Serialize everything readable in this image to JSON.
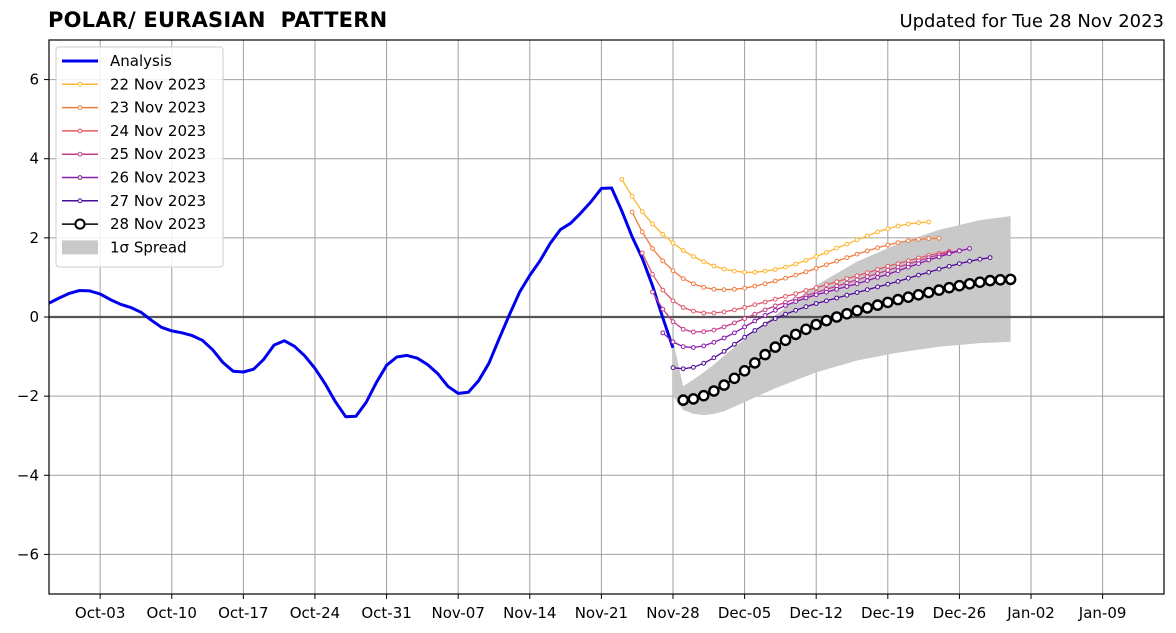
{
  "chart_data": {
    "type": "line",
    "title": "POLAR/ EURASIAN  PATTERN",
    "subtitle": "Updated for Tue 28 Nov 2023",
    "xlabel": "",
    "ylabel": "",
    "ylim": [
      -7,
      7
    ],
    "xlim": [
      "2023-09-28",
      "2024-01-15"
    ],
    "grid": true,
    "legend_position": "top-left",
    "x_ticks": [
      "2023-10-03",
      "2023-10-10",
      "2023-10-17",
      "2023-10-24",
      "2023-10-31",
      "2023-11-07",
      "2023-11-14",
      "2023-11-21",
      "2023-11-28",
      "2023-12-05",
      "2023-12-12",
      "2023-12-19",
      "2023-12-26",
      "2024-01-02",
      "2024-01-09"
    ],
    "x_tick_labels": [
      "Oct-03",
      "Oct-10",
      "Oct-17",
      "Oct-24",
      "Oct-31",
      "Nov-07",
      "Nov-14",
      "Nov-21",
      "Nov-28",
      "Dec-05",
      "Dec-12",
      "Dec-19",
      "Dec-26",
      "Jan-02",
      "Jan-09"
    ],
    "y_ticks": [
      -6,
      -4,
      -2,
      0,
      2,
      4,
      6
    ],
    "y_tick_labels": [
      "−6",
      "−4",
      "−2",
      "0",
      "2",
      "4",
      "6"
    ],
    "legend_order": [
      "Analysis",
      "22 Nov 2023",
      "23 Nov 2023",
      "24 Nov 2023",
      "25 Nov 2023",
      "26 Nov 2023",
      "27 Nov 2023",
      "28 Nov 2023",
      "1σ Spread"
    ],
    "analysis": {
      "name": "Analysis",
      "color": "#0000ee",
      "start": "2023-09-28",
      "values": [
        0.35,
        0.48,
        0.6,
        0.67,
        0.66,
        0.58,
        0.44,
        0.32,
        0.24,
        0.12,
        -0.08,
        -0.26,
        -0.35,
        -0.4,
        -0.47,
        -0.59,
        -0.83,
        -1.15,
        -1.37,
        -1.39,
        -1.32,
        -1.07,
        -0.71,
        -0.6,
        -0.74,
        -0.98,
        -1.3,
        -1.69,
        -2.14,
        -2.52,
        -2.51,
        -2.16,
        -1.66,
        -1.22,
        -1.01,
        -0.97,
        -1.04,
        -1.2,
        -1.43,
        -1.75,
        -1.93,
        -1.9,
        -1.61,
        -1.17,
        -0.55,
        0.05,
        0.63,
        1.05,
        1.42,
        1.86,
        2.21,
        2.37,
        2.63,
        2.92,
        3.25,
        3.26,
        2.68,
        2.03,
        1.48,
        0.79,
        -0.02,
        -0.78
      ]
    },
    "forecasts": [
      {
        "name": "22 Nov 2023",
        "color": "#ffb630",
        "start": "2023-11-23",
        "values": [
          3.48,
          3.05,
          2.66,
          2.35,
          2.09,
          1.87,
          1.68,
          1.53,
          1.4,
          1.29,
          1.21,
          1.16,
          1.13,
          1.13,
          1.16,
          1.2,
          1.26,
          1.34,
          1.43,
          1.53,
          1.63,
          1.74,
          1.84,
          1.95,
          2.05,
          2.15,
          2.23,
          2.3,
          2.35,
          2.38,
          2.4
        ]
      },
      {
        "name": "23 Nov 2023",
        "color": "#f07d40",
        "start": "2023-11-24",
        "values": [
          2.65,
          2.15,
          1.73,
          1.42,
          1.17,
          0.97,
          0.84,
          0.75,
          0.7,
          0.69,
          0.7,
          0.73,
          0.78,
          0.84,
          0.91,
          0.98,
          1.06,
          1.14,
          1.23,
          1.32,
          1.41,
          1.5,
          1.59,
          1.67,
          1.75,
          1.82,
          1.88,
          1.93,
          1.96,
          1.98,
          1.99
        ]
      },
      {
        "name": "24 Nov 2023",
        "color": "#e05a68",
        "start": "2023-11-25",
        "values": [
          1.62,
          1.08,
          0.68,
          0.41,
          0.24,
          0.15,
          0.1,
          0.1,
          0.13,
          0.18,
          0.24,
          0.31,
          0.38,
          0.45,
          0.52,
          0.59,
          0.67,
          0.74,
          0.82,
          0.89,
          0.97,
          1.04,
          1.12,
          1.2,
          1.28,
          1.35,
          1.42,
          1.49,
          1.56,
          1.61,
          1.66
        ]
      },
      {
        "name": "25 Nov 2023",
        "color": "#c43c88",
        "start": "2023-11-26",
        "values": [
          0.63,
          0.2,
          -0.12,
          -0.31,
          -0.38,
          -0.37,
          -0.33,
          -0.25,
          -0.15,
          -0.04,
          0.07,
          0.18,
          0.28,
          0.37,
          0.46,
          0.54,
          0.62,
          0.7,
          0.78,
          0.86,
          0.94,
          1.02,
          1.1,
          1.18,
          1.26,
          1.34,
          1.42,
          1.5,
          1.57,
          1.63,
          1.68
        ]
      },
      {
        "name": "26 Nov 2023",
        "color": "#8a1cac",
        "start": "2023-11-27",
        "values": [
          -0.4,
          -0.63,
          -0.75,
          -0.77,
          -0.73,
          -0.64,
          -0.53,
          -0.4,
          -0.25,
          -0.1,
          0.04,
          0.17,
          0.29,
          0.39,
          0.48,
          0.56,
          0.63,
          0.7,
          0.77,
          0.84,
          0.92,
          1.0,
          1.08,
          1.17,
          1.26,
          1.35,
          1.44,
          1.52,
          1.6,
          1.67,
          1.73
        ]
      },
      {
        "name": "27 Nov 2023",
        "color": "#4c0898",
        "start": "2023-11-28",
        "values": [
          -1.28,
          -1.31,
          -1.27,
          -1.17,
          -1.03,
          -0.87,
          -0.69,
          -0.51,
          -0.34,
          -0.18,
          -0.04,
          0.07,
          0.17,
          0.26,
          0.34,
          0.41,
          0.48,
          0.55,
          0.62,
          0.69,
          0.76,
          0.83,
          0.9,
          0.98,
          1.06,
          1.13,
          1.21,
          1.28,
          1.35,
          1.41,
          1.46,
          1.5
        ]
      },
      {
        "name": "28 Nov 2023",
        "color": "#000000",
        "start": "2023-11-29",
        "values": [
          -2.1,
          -2.07,
          -1.99,
          -1.87,
          -1.72,
          -1.55,
          -1.36,
          -1.16,
          -0.95,
          -0.76,
          -0.59,
          -0.44,
          -0.31,
          -0.19,
          -0.09,
          0.0,
          0.08,
          0.16,
          0.23,
          0.3,
          0.37,
          0.44,
          0.5,
          0.56,
          0.62,
          0.68,
          0.74,
          0.79,
          0.84,
          0.88,
          0.92,
          0.94,
          0.95
        ]
      }
    ],
    "spread": {
      "name": "1σ Spread",
      "color": "#c9c9c9",
      "x": [
        "2023-11-28",
        "2023-11-29",
        "2023-11-30",
        "2023-12-01",
        "2023-12-02",
        "2023-12-03",
        "2023-12-05",
        "2023-12-08",
        "2023-12-12",
        "2023-12-16",
        "2023-12-20",
        "2023-12-24",
        "2023-12-28",
        "2023-12-31"
      ],
      "upper": [
        -0.6,
        -1.75,
        -1.58,
        -1.4,
        -1.2,
        -0.98,
        -0.55,
        0.05,
        0.8,
        1.4,
        1.85,
        2.2,
        2.45,
        2.55
      ],
      "lower": [
        -2.0,
        -2.35,
        -2.45,
        -2.48,
        -2.45,
        -2.38,
        -2.15,
        -1.8,
        -1.4,
        -1.1,
        -0.9,
        -0.75,
        -0.66,
        -0.63
      ]
    }
  }
}
